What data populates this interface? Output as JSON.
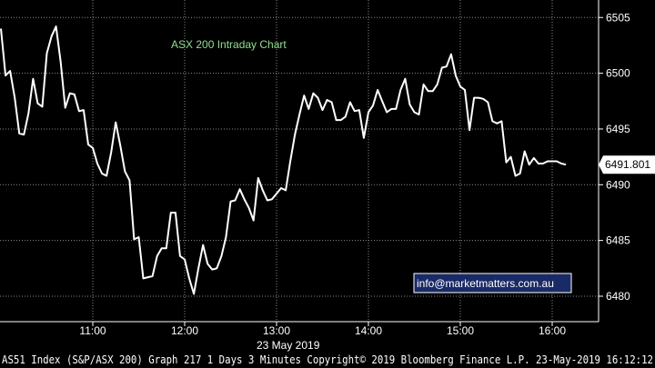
{
  "chart_data": {
    "type": "line",
    "title": "ASX 200 Intraday Chart",
    "date_label": "23 May 2019",
    "x_ticks": [
      "11:00",
      "12:00",
      "13:00",
      "14:00",
      "15:00",
      "16:00"
    ],
    "y_ticks": [
      "6480",
      "6485",
      "6490",
      "6495",
      "6500",
      "6505"
    ],
    "ylim": [
      6478,
      6507
    ],
    "xlim": [
      "10:00",
      "16:30"
    ],
    "grid": true,
    "last_value": "6491.801",
    "series": [
      {
        "color": "#ffffff",
        "x": [
          "10:00",
          "10:03",
          "10:06",
          "10:09",
          "10:12",
          "10:15",
          "10:18",
          "10:21",
          "10:24",
          "10:27",
          "10:30",
          "10:33",
          "10:36",
          "10:39",
          "10:42",
          "10:45",
          "10:48",
          "10:51",
          "10:54",
          "10:57",
          "11:00",
          "11:03",
          "11:06",
          "11:09",
          "11:12",
          "11:15",
          "11:18",
          "11:21",
          "11:24",
          "11:27",
          "11:30",
          "11:33",
          "11:36",
          "11:39",
          "11:42",
          "11:45",
          "11:48",
          "11:51",
          "11:54",
          "11:57",
          "12:00",
          "12:03",
          "12:06",
          "12:09",
          "12:12",
          "12:15",
          "12:18",
          "12:21",
          "12:24",
          "12:27",
          "12:30",
          "12:33",
          "12:36",
          "12:39",
          "12:42",
          "12:45",
          "12:48",
          "12:51",
          "12:54",
          "12:57",
          "13:00",
          "13:03",
          "13:06",
          "13:09",
          "13:12",
          "13:15",
          "13:18",
          "13:21",
          "13:24",
          "13:27",
          "13:30",
          "13:33",
          "13:36",
          "13:39",
          "13:42",
          "13:45",
          "13:48",
          "13:51",
          "13:54",
          "13:57",
          "14:00",
          "14:03",
          "14:06",
          "14:09",
          "14:12",
          "14:15",
          "14:18",
          "14:21",
          "14:24",
          "14:27",
          "14:30",
          "14:33",
          "14:36",
          "14:39",
          "14:42",
          "14:45",
          "14:48",
          "14:51",
          "14:54",
          "14:57",
          "15:00",
          "15:03",
          "15:06",
          "15:09",
          "15:12",
          "15:15",
          "15:18",
          "15:21",
          "15:24",
          "15:27",
          "15:30",
          "15:33",
          "15:36",
          "15:39",
          "15:42",
          "15:45",
          "15:48",
          "15:51",
          "15:54",
          "15:57",
          "16:00",
          "16:03",
          "16:06",
          "16:09"
        ],
        "values": [
          6504.0,
          6499.8,
          6500.2,
          6497.8,
          6494.6,
          6494.5,
          6496.4,
          6499.5,
          6497.3,
          6497.0,
          6501.8,
          6503.3,
          6504.2,
          6501.0,
          6496.9,
          6498.2,
          6498.1,
          6496.6,
          6496.7,
          6493.6,
          6493.3,
          6491.9,
          6491.0,
          6490.8,
          6492.9,
          6495.6,
          6493.5,
          6491.2,
          6490.4,
          6485.1,
          6485.3,
          6481.6,
          6481.7,
          6481.8,
          6483.6,
          6484.3,
          6484.3,
          6487.5,
          6487.5,
          6483.6,
          6483.3,
          6481.6,
          6480.2,
          6482.5,
          6484.6,
          6482.9,
          6482.4,
          6482.5,
          6483.6,
          6485.3,
          6488.5,
          6488.6,
          6489.6,
          6488.7,
          6487.9,
          6486.8,
          6490.6,
          6489.5,
          6488.6,
          6488.7,
          6489.2,
          6489.7,
          6489.5,
          6492.1,
          6494.5,
          6496.3,
          6498.0,
          6496.8,
          6498.2,
          6497.8,
          6496.7,
          6497.6,
          6497.4,
          6495.8,
          6495.8,
          6496.1,
          6497.4,
          6496.6,
          6496.7,
          6494.2,
          6496.5,
          6497.1,
          6498.5,
          6497.5,
          6496.5,
          6496.8,
          6496.8,
          6498.5,
          6499.5,
          6497.2,
          6496.5,
          6496.3,
          6499.0,
          6498.4,
          6498.4,
          6499.0,
          6500.5,
          6500.6,
          6501.7,
          6499.8,
          6498.8,
          6498.5,
          6494.9,
          6497.8,
          6497.8,
          6497.7,
          6497.4,
          6495.7,
          6495.5,
          6495.7,
          6492.0,
          6492.5,
          6490.8,
          6491.0,
          6493.0,
          6491.8,
          6492.4,
          6491.9,
          6491.9,
          6492.1,
          6492.1,
          6492.1,
          6491.9,
          6491.8
        ]
      }
    ]
  },
  "badge": {
    "text": "info@marketmatters.com.au"
  },
  "footer": {
    "text": "AS51 Index (S&P/ASX 200) Graph 217 1 Days 3 Minutes Copyright© 2019 Bloomberg Finance L.P. 23-May-2019 16:12:12"
  }
}
